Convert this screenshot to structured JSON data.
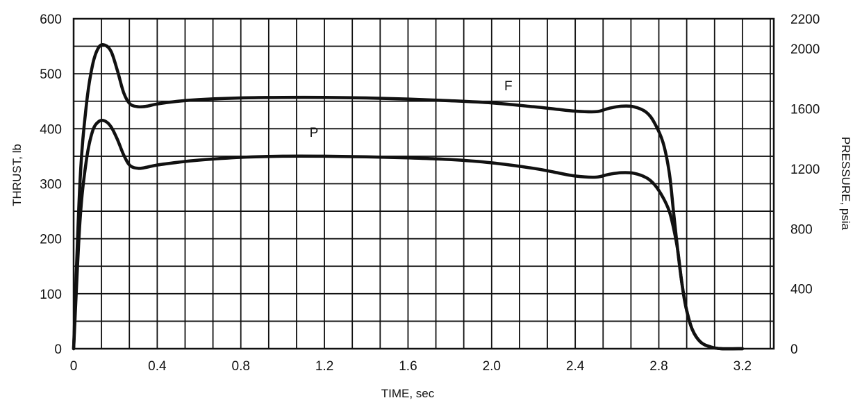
{
  "chart_data": {
    "type": "line",
    "xlabel": "TIME, sec",
    "ylabel_left": "THRUST, lb",
    "ylabel_right": "PRESSURE, psia",
    "xlim": [
      0,
      3.35
    ],
    "ylim_left": [
      0,
      600
    ],
    "ylim_right": [
      0,
      2200
    ],
    "x_ticks": [
      0,
      0.4,
      0.8,
      1.2,
      1.6,
      2.0,
      2.4,
      2.8,
      3.2
    ],
    "x_tick_labels": [
      "0",
      "0.4",
      "0.8",
      "1.2",
      "1.6",
      "2.0",
      "2.4",
      "2.8",
      "3.2"
    ],
    "y_left_ticks": [
      0,
      100,
      200,
      300,
      400,
      500,
      600
    ],
    "y_left_tick_labels": [
      "0",
      "100",
      "200",
      "300",
      "400",
      "500",
      "600"
    ],
    "y_right_ticks": [
      0,
      400,
      800,
      1200,
      1600,
      2000,
      2200
    ],
    "y_right_tick_labels": [
      "0",
      "400",
      "800",
      "1200",
      "1600",
      "2000",
      "2200"
    ],
    "grid": true,
    "grid_x_step": 0.133333,
    "grid_y_step": 50,
    "series": [
      {
        "name": "F",
        "axis": "left",
        "x": [
          0,
          0.03,
          0.06,
          0.09,
          0.12,
          0.15,
          0.18,
          0.21,
          0.24,
          0.27,
          0.31,
          0.35,
          0.4,
          0.5,
          0.6,
          0.8,
          1.0,
          1.2,
          1.4,
          1.6,
          1.8,
          2.0,
          2.2,
          2.3,
          2.4,
          2.5,
          2.56,
          2.62,
          2.68,
          2.74,
          2.78,
          2.82,
          2.85,
          2.87,
          2.89,
          2.91,
          2.93,
          2.96,
          3.0,
          3.05,
          3.1,
          3.2
        ],
        "y": [
          0,
          300,
          440,
          515,
          548,
          552,
          540,
          505,
          465,
          445,
          440,
          441,
          445,
          450,
          453,
          456,
          457,
          457,
          456,
          454,
          451,
          447,
          440,
          436,
          432,
          431,
          437,
          441,
          440,
          430,
          410,
          375,
          320,
          250,
          180,
          120,
          75,
          35,
          12,
          3,
          0,
          0
        ]
      },
      {
        "name": "P",
        "axis": "left",
        "x": [
          0,
          0.03,
          0.06,
          0.09,
          0.12,
          0.15,
          0.18,
          0.21,
          0.24,
          0.27,
          0.31,
          0.35,
          0.4,
          0.5,
          0.6,
          0.8,
          1.0,
          1.2,
          1.4,
          1.6,
          1.8,
          2.0,
          2.2,
          2.3,
          2.4,
          2.5,
          2.56,
          2.62,
          2.68,
          2.74,
          2.78,
          2.82,
          2.85,
          2.87,
          2.89,
          2.91,
          2.93,
          2.96,
          3.0,
          3.05,
          3.1,
          3.2
        ],
        "y": [
          0,
          230,
          340,
          395,
          413,
          414,
          403,
          380,
          352,
          333,
          328,
          330,
          334,
          339,
          343,
          348,
          350,
          350,
          349,
          347,
          344,
          338,
          328,
          321,
          314,
          312,
          317,
          320,
          319,
          311,
          298,
          275,
          250,
          220,
          180,
          120,
          75,
          35,
          12,
          3,
          0,
          0
        ]
      }
    ],
    "annotations": [
      {
        "text": "F",
        "x": 2.08,
        "y": 470
      },
      {
        "text": "P",
        "x": 1.15,
        "y": 385
      }
    ]
  }
}
